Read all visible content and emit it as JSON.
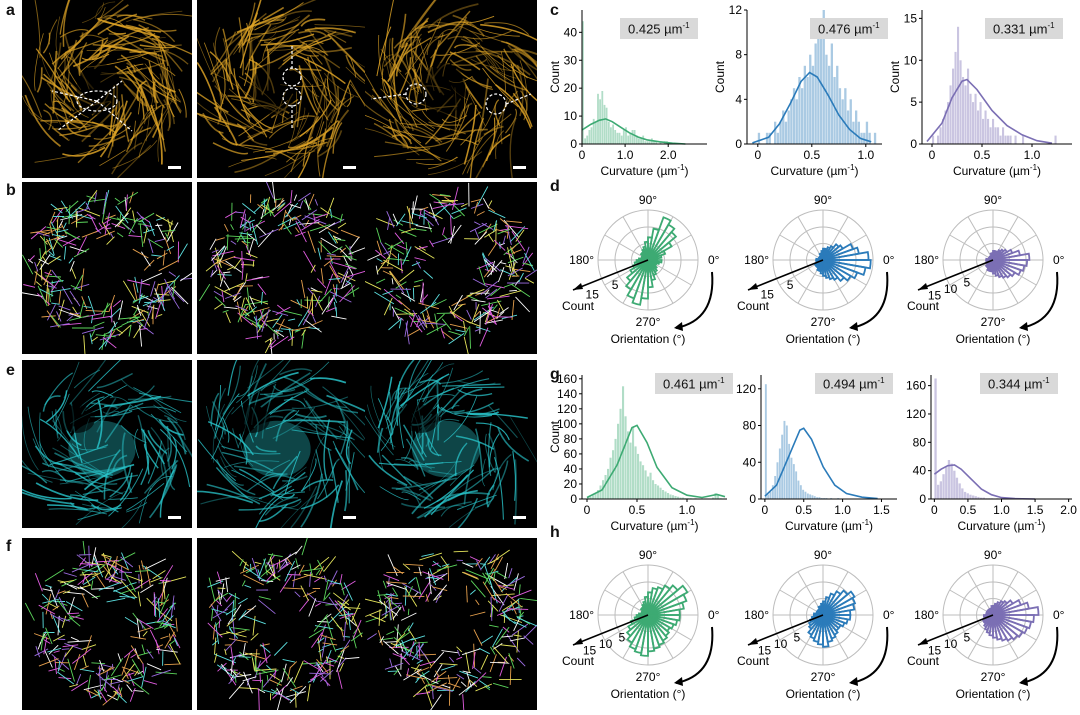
{
  "panel_labels": {
    "a": "a",
    "b": "b",
    "c": "c",
    "d": "d",
    "e": "e",
    "f": "f",
    "g": "g",
    "h": "h"
  },
  "colors": {
    "green": "#3daa73",
    "blue": "#2b7bba",
    "purple": "#7b6fb4",
    "gold": "#e0a526",
    "cyan": "#29c6cc"
  },
  "chart_data": [
    {
      "type": "bar",
      "panel": "c",
      "title": "",
      "badge": "0.425 µm",
      "badge_sup": "-1",
      "xlabel": "Curvature (µm",
      "xlabel_sup": "-1",
      "ylabel": "Count",
      "xlim": [
        0,
        2.9
      ],
      "ylim": [
        0,
        48
      ],
      "xticks": [
        "0",
        "1.0",
        "2.0"
      ],
      "xtick_vals": [
        0,
        1,
        2
      ],
      "yticks": [
        0,
        10,
        20,
        30,
        40
      ],
      "bin_width": 0.05,
      "color": "#3daa73",
      "values": [
        44,
        2,
        3,
        5,
        6,
        9,
        8,
        18,
        16,
        19,
        14,
        13,
        8,
        6,
        7,
        5,
        4,
        4,
        3,
        5,
        6,
        3,
        4,
        5,
        5,
        3,
        2,
        2,
        3,
        1,
        1,
        1,
        2,
        1,
        1,
        0,
        1,
        0,
        1,
        1,
        0,
        0,
        0,
        0,
        0,
        0,
        0,
        0
      ],
      "kde": [
        [
          0,
          5
        ],
        [
          0.2,
          7
        ],
        [
          0.4,
          8.5
        ],
        [
          0.55,
          9
        ],
        [
          0.7,
          8
        ],
        [
          0.9,
          6
        ],
        [
          1.1,
          4
        ],
        [
          1.3,
          2.5
        ],
        [
          1.5,
          1.5
        ],
        [
          1.8,
          0.8
        ],
        [
          2.1,
          0.3
        ],
        [
          2.4,
          0
        ]
      ]
    },
    {
      "type": "bar",
      "panel": "c",
      "title": "",
      "badge": "0.476 µm",
      "badge_sup": "-1",
      "xlabel": "Curvature (µm",
      "xlabel_sup": "-1",
      "ylabel": "Count",
      "xlim": [
        -0.1,
        1.15
      ],
      "ylim": [
        0,
        12
      ],
      "xticks": [
        "0",
        "0.5",
        "1.0"
      ],
      "xtick_vals": [
        0,
        0.5,
        1
      ],
      "yticks": [
        0,
        4,
        8,
        12
      ],
      "bin_width": 0.025,
      "color": "#2b7bba",
      "values": [
        1,
        0,
        0,
        1,
        1,
        0,
        2,
        1,
        2,
        3,
        2,
        3,
        4,
        5,
        4,
        6,
        5,
        7,
        6,
        8,
        7,
        9,
        11,
        10,
        12,
        8,
        7,
        9,
        6,
        7,
        5,
        4,
        5,
        3,
        4,
        2,
        3,
        2,
        1,
        1,
        2,
        1,
        0,
        1,
        0
      ],
      "kde": [
        [
          -0.05,
          0.1
        ],
        [
          0.1,
          0.6
        ],
        [
          0.2,
          1.8
        ],
        [
          0.3,
          3.6
        ],
        [
          0.4,
          5.6
        ],
        [
          0.48,
          6.4
        ],
        [
          0.55,
          6
        ],
        [
          0.65,
          4.4
        ],
        [
          0.75,
          2.6
        ],
        [
          0.85,
          1.3
        ],
        [
          0.95,
          0.5
        ],
        [
          1.05,
          0.2
        ]
      ]
    },
    {
      "type": "bar",
      "panel": "c",
      "title": "",
      "badge": "0.331 µm",
      "badge_sup": "-1",
      "xlabel": "Curvature (µm",
      "xlabel_sup": "-1",
      "ylabel": "Count",
      "xlim": [
        -0.1,
        1.4
      ],
      "ylim": [
        0,
        16
      ],
      "xticks": [
        "0",
        "0.5",
        "1.0"
      ],
      "xtick_vals": [
        0,
        0.5,
        1
      ],
      "yticks": [
        0,
        5,
        10,
        15
      ],
      "bin_width": 0.025,
      "color": "#7b6fb4",
      "values": [
        1,
        0,
        1,
        2,
        3,
        4,
        5,
        7,
        9,
        11,
        14,
        10,
        8,
        7,
        9,
        6,
        5,
        6,
        4,
        5,
        3,
        4,
        3,
        2,
        3,
        2,
        2,
        1,
        2,
        1,
        1,
        1,
        0,
        1,
        0,
        0,
        1,
        0,
        0,
        0,
        0,
        0,
        0,
        0,
        0,
        0,
        0,
        0,
        0,
        1
      ],
      "kde": [
        [
          -0.05,
          0.3
        ],
        [
          0.1,
          2.5
        ],
        [
          0.2,
          5.5
        ],
        [
          0.3,
          7.5
        ],
        [
          0.35,
          7.7
        ],
        [
          0.45,
          6.5
        ],
        [
          0.6,
          4
        ],
        [
          0.75,
          2.2
        ],
        [
          0.9,
          1.1
        ],
        [
          1.05,
          0.4
        ],
        [
          1.2,
          0.1
        ]
      ]
    },
    {
      "type": "bar",
      "panel": "g",
      "title": "",
      "badge": "0.461 µm",
      "badge_sup": "-1",
      "xlabel": "Curvature (µm",
      "xlabel_sup": "-1",
      "ylabel": "Count",
      "xlim": [
        -0.05,
        1.4
      ],
      "ylim": [
        0,
        165
      ],
      "xticks": [
        "0",
        "0.5",
        "1.0"
      ],
      "xtick_vals": [
        0,
        0.5,
        1
      ],
      "yticks": [
        0,
        20,
        40,
        60,
        80,
        100,
        120,
        140,
        160
      ],
      "bin_width": 0.025,
      "color": "#3daa73",
      "values": [
        2,
        3,
        5,
        8,
        12,
        18,
        25,
        32,
        40,
        55,
        65,
        80,
        100,
        120,
        150,
        110,
        90,
        75,
        95,
        70,
        60,
        50,
        45,
        38,
        30,
        35,
        25,
        20,
        18,
        15,
        12,
        10,
        8,
        6,
        5,
        4,
        3,
        2,
        2,
        1,
        1,
        1,
        0,
        1,
        0,
        0,
        0,
        0,
        0,
        0,
        2,
        8,
        5,
        1
      ],
      "kde": [
        [
          0,
          2
        ],
        [
          0.15,
          12
        ],
        [
          0.3,
          45
        ],
        [
          0.45,
          95
        ],
        [
          0.5,
          98
        ],
        [
          0.6,
          75
        ],
        [
          0.7,
          42
        ],
        [
          0.85,
          15
        ],
        [
          1.0,
          5
        ],
        [
          1.15,
          2
        ],
        [
          1.3,
          6
        ],
        [
          1.38,
          3
        ]
      ]
    },
    {
      "type": "bar",
      "panel": "g",
      "title": "",
      "badge": "0.494 µm",
      "badge_sup": "-1",
      "xlabel": "Curvature (µm",
      "xlabel_sup": "-1",
      "ylabel": "",
      "xlim": [
        -0.05,
        1.7
      ],
      "ylim": [
        0,
        135
      ],
      "xticks": [
        "0",
        "0.5",
        "1.0",
        "1.5"
      ],
      "xtick_vals": [
        0,
        0.5,
        1,
        1.5
      ],
      "yticks": [
        0,
        40,
        80,
        120
      ],
      "bin_width": 0.03,
      "color": "#2b7bba",
      "values": [
        125,
        5,
        8,
        15,
        25,
        40,
        55,
        70,
        85,
        80,
        60,
        45,
        38,
        30,
        20,
        15,
        10,
        8,
        6,
        5,
        4,
        3,
        2,
        2,
        1,
        1,
        1,
        0,
        1,
        0,
        0,
        1,
        0,
        0,
        0,
        0,
        0,
        0,
        0,
        0,
        0,
        0,
        0,
        0,
        0,
        0,
        0,
        0,
        0,
        0,
        0,
        0,
        0,
        0,
        0,
        0,
        0,
        0
      ],
      "kde": [
        [
          0,
          3
        ],
        [
          0.15,
          15
        ],
        [
          0.3,
          45
        ],
        [
          0.45,
          75
        ],
        [
          0.5,
          77
        ],
        [
          0.6,
          65
        ],
        [
          0.75,
          35
        ],
        [
          0.9,
          15
        ],
        [
          1.05,
          6
        ],
        [
          1.25,
          2
        ],
        [
          1.45,
          0.5
        ]
      ]
    },
    {
      "type": "bar",
      "panel": "g",
      "title": "",
      "badge": "0.344 µm",
      "badge_sup": "-1",
      "xlabel": "Curvature (µm",
      "xlabel_sup": "-1",
      "ylabel": "",
      "xlim": [
        -0.05,
        2.05
      ],
      "ylim": [
        0,
        175
      ],
      "xticks": [
        "0",
        "0.5",
        "1.0",
        "1.5",
        "2.0"
      ],
      "xtick_vals": [
        0,
        0.5,
        1,
        1.5,
        2
      ],
      "yticks": [
        0,
        40,
        80,
        120,
        160
      ],
      "bin_width": 0.04,
      "color": "#7b6fb4",
      "values": [
        170,
        20,
        25,
        35,
        45,
        55,
        50,
        40,
        30,
        22,
        15,
        10,
        8,
        6,
        5,
        4,
        3,
        2,
        2,
        1,
        1,
        1,
        0,
        1,
        0,
        0,
        0,
        0,
        0,
        0,
        0,
        0,
        0,
        0,
        0,
        0,
        0,
        0,
        0,
        0,
        0,
        0,
        0,
        0,
        0,
        0,
        0,
        0,
        0,
        0,
        0,
        0
      ],
      "kde": [
        [
          0,
          35
        ],
        [
          0.1,
          42
        ],
        [
          0.2,
          47
        ],
        [
          0.3,
          48
        ],
        [
          0.4,
          42
        ],
        [
          0.55,
          28
        ],
        [
          0.7,
          14
        ],
        [
          0.85,
          6
        ],
        [
          1.0,
          2
        ],
        [
          1.2,
          0.5
        ],
        [
          1.5,
          0
        ]
      ]
    }
  ],
  "roses": [
    {
      "panel": "d",
      "color": "#3daa73",
      "angle_labels": [
        "90°",
        "180°",
        "0°",
        "270°"
      ],
      "radial_labels": [
        "5",
        "15"
      ],
      "count_label": "Count",
      "orientation_label": "Orientation (°)",
      "rmax": 22,
      "values": [
        4,
        6,
        8,
        12,
        16,
        18,
        20,
        14,
        10,
        8,
        6,
        5,
        4,
        4,
        3,
        3,
        3,
        4,
        5,
        6,
        7,
        9,
        12,
        15,
        18,
        20,
        17,
        12,
        9,
        7,
        6,
        5,
        4,
        4,
        5,
        6
      ]
    },
    {
      "panel": "d",
      "color": "#2b7bba",
      "angle_labels": [
        "90°",
        "180°",
        "0°",
        "270°"
      ],
      "radial_labels": [
        "5",
        "15"
      ],
      "count_label": "Count",
      "orientation_label": "Orientation (°)",
      "rmax": 22,
      "values": [
        20,
        16,
        14,
        10,
        9,
        7,
        6,
        5,
        5,
        4,
        3,
        3,
        2,
        2,
        2,
        2,
        2,
        3,
        3,
        3,
        3,
        4,
        4,
        4,
        5,
        5,
        6,
        7,
        8,
        9,
        10,
        12,
        14,
        16,
        19,
        21
      ]
    },
    {
      "panel": "d",
      "color": "#7b6fb4",
      "angle_labels": [
        "90°",
        "180°",
        "0°",
        "270°"
      ],
      "radial_labels": [
        "5",
        "10",
        "15"
      ],
      "count_label": "Count",
      "orientation_label": "Orientation (°)",
      "rmax": 22,
      "values": [
        16,
        12,
        9,
        7,
        6,
        5,
        4,
        4,
        4,
        3,
        3,
        2,
        2,
        2,
        2,
        2,
        2,
        3,
        3,
        3,
        3,
        3,
        4,
        4,
        5,
        5,
        5,
        6,
        7,
        8,
        9,
        10,
        11,
        13,
        14,
        15
      ]
    },
    {
      "panel": "h",
      "color": "#3daa73",
      "angle_labels": [
        "90°",
        "180°",
        "0°",
        "270°"
      ],
      "radial_labels": [
        "5",
        "10",
        "15"
      ],
      "count_label": "Count",
      "orientation_label": "Orientation (°)",
      "rmax": 22,
      "values": [
        14,
        16,
        18,
        20,
        17,
        15,
        13,
        12,
        10,
        8,
        6,
        5,
        4,
        4,
        3,
        3,
        3,
        4,
        5,
        6,
        8,
        10,
        12,
        14,
        16,
        17,
        18,
        16,
        15,
        14,
        13,
        12,
        11,
        12,
        13,
        14
      ]
    },
    {
      "panel": "h",
      "color": "#2b7bba",
      "angle_labels": [
        "90°",
        "180°",
        "0°",
        "270°"
      ],
      "radial_labels": [
        "5",
        "10",
        "15"
      ],
      "count_label": "Count",
      "orientation_label": "Orientation (°)",
      "rmax": 22,
      "values": [
        12,
        14,
        15,
        16,
        14,
        12,
        10,
        8,
        6,
        5,
        4,
        4,
        3,
        3,
        3,
        3,
        3,
        4,
        4,
        5,
        6,
        7,
        8,
        10,
        11,
        12,
        13,
        14,
        12,
        11,
        10,
        9,
        9,
        10,
        11,
        12
      ]
    },
    {
      "panel": "h",
      "color": "#7b6fb4",
      "angle_labels": [
        "90°",
        "180°",
        "0°",
        "270°"
      ],
      "radial_labels": [
        "5",
        "10",
        "15"
      ],
      "count_label": "Count",
      "orientation_label": "Orientation (°)",
      "rmax": 22,
      "values": [
        20,
        16,
        13,
        10,
        8,
        7,
        6,
        5,
        4,
        4,
        3,
        3,
        3,
        3,
        3,
        3,
        3,
        3,
        4,
        4,
        4,
        5,
        5,
        6,
        7,
        8,
        9,
        10,
        11,
        12,
        13,
        14,
        15,
        16,
        17,
        18
      ]
    }
  ]
}
